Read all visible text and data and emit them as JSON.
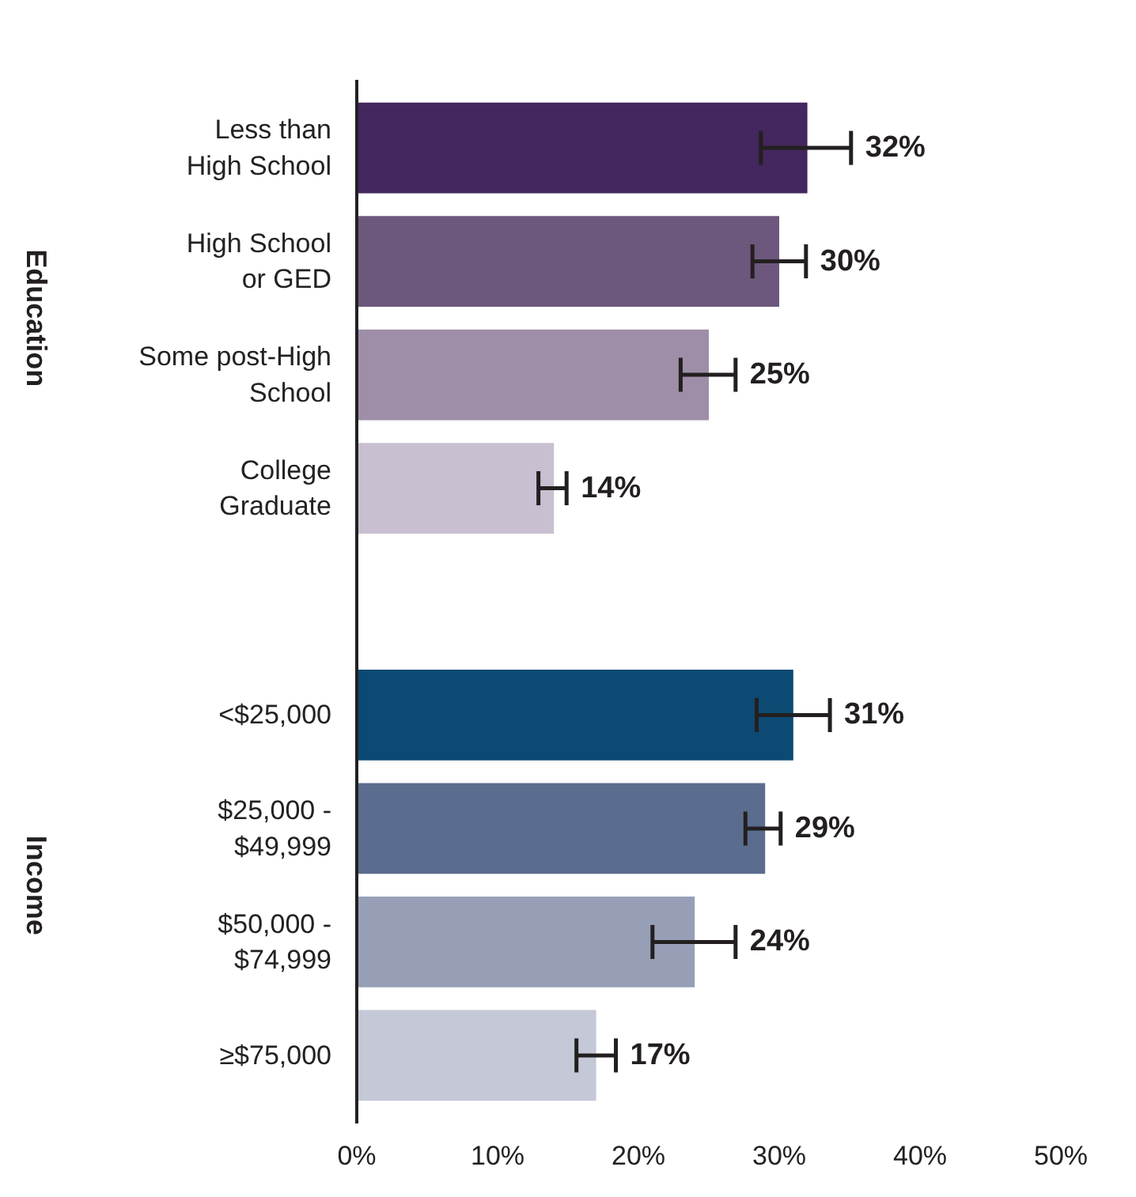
{
  "chart_data": {
    "type": "bar",
    "orientation": "horizontal",
    "categories": [
      "Less than\nHigh School",
      "High School\nor GED",
      "Some post-High\nSchool",
      "College\nGraduate",
      null,
      "<$25,000",
      "$25,000 -\n$49,999",
      "$50,000 -\n$74,999",
      "≥$75,000"
    ],
    "values": [
      32,
      30,
      25,
      14,
      null,
      31,
      29,
      24,
      17
    ],
    "colors": [
      "#44275e",
      "#6c587c",
      "#9e8ea8",
      "#c8c0d1",
      null,
      "#0c4a73",
      "#5a6d8e",
      "#979fb7",
      "#c4c8d7"
    ],
    "errors": [
      [
        28.7,
        35.1
      ],
      [
        28.1,
        31.9
      ],
      [
        23.0,
        26.9
      ],
      [
        12.9,
        14.9
      ],
      null,
      [
        28.4,
        33.6
      ],
      [
        27.6,
        30.1
      ],
      [
        21.0,
        26.9
      ],
      [
        15.6,
        18.4
      ]
    ],
    "value_labels": [
      "32%",
      "30%",
      "25%",
      "14%",
      null,
      "31%",
      "29%",
      "24%",
      "17%"
    ],
    "annotations": [
      "Education",
      "Income"
    ],
    "xlim": [
      0,
      50
    ],
    "xticks": [
      {
        "value": 0,
        "label": "0%"
      },
      {
        "value": 10,
        "label": "10%"
      },
      {
        "value": 20,
        "label": "20%"
      },
      {
        "value": 30,
        "label": "30%"
      },
      {
        "value": 40,
        "label": "40%"
      },
      {
        "value": 50,
        "label": "50%"
      }
    ],
    "grid": false,
    "legend": false
  }
}
